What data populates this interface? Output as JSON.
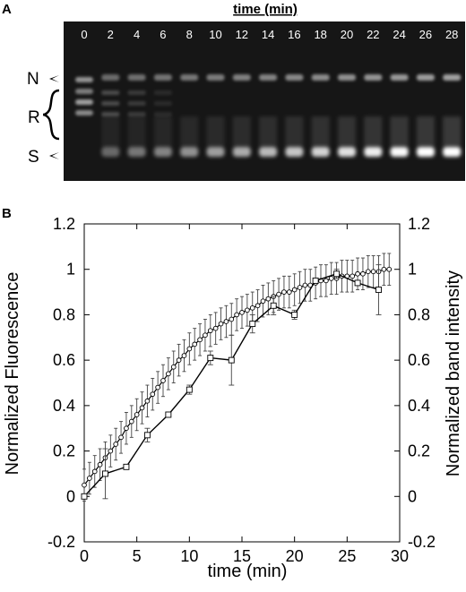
{
  "panel_a": {
    "letter": "A",
    "title": "time (min)",
    "lanes": [
      "0",
      "2",
      "4",
      "6",
      "8",
      "10",
      "12",
      "14",
      "16",
      "18",
      "20",
      "22",
      "24",
      "26",
      "28"
    ],
    "band_labels": {
      "n": "N",
      "r": "R",
      "s": "S"
    }
  },
  "panel_b": {
    "letter": "B"
  },
  "chart_data": {
    "type": "line",
    "xlabel": "time (min)",
    "ylabel": "Normalized Fluorescence",
    "ylabel_right": "Normalized band intensity",
    "xlim": [
      0,
      30
    ],
    "ylim": [
      -0.2,
      1.2
    ],
    "xticks": [
      0,
      5,
      10,
      15,
      20,
      25,
      30
    ],
    "yticks": [
      -0.2,
      0,
      0.2,
      0.4,
      0.6,
      0.8,
      1,
      1.2
    ],
    "ytick_labels": [
      "-0.2",
      "0",
      "0.2",
      "0.4",
      "0.6",
      "0.8",
      "1",
      "1.2"
    ],
    "xtick_labels": [
      "0",
      "5",
      "10",
      "15",
      "20",
      "25",
      "30"
    ],
    "grid": false,
    "series": [
      {
        "marker": "circle",
        "x": [
          0,
          0.5,
          1,
          1.5,
          2,
          2.5,
          3,
          3.5,
          4,
          4.5,
          5,
          5.5,
          6,
          6.5,
          7,
          7.5,
          8,
          8.5,
          9,
          9.5,
          10,
          10.5,
          11,
          11.5,
          12,
          12.5,
          13,
          13.5,
          14,
          14.5,
          15,
          15.5,
          16,
          16.5,
          17,
          17.5,
          18,
          18.5,
          19,
          19.5,
          20,
          20.5,
          21,
          21.5,
          22,
          22.5,
          23,
          23.5,
          24,
          24.5,
          25,
          25.5,
          26,
          26.5,
          27,
          27.5,
          28,
          28.5,
          29
        ],
        "y": [
          0.05,
          0.08,
          0.11,
          0.14,
          0.17,
          0.2,
          0.23,
          0.26,
          0.3,
          0.33,
          0.36,
          0.39,
          0.42,
          0.45,
          0.48,
          0.51,
          0.54,
          0.57,
          0.6,
          0.62,
          0.65,
          0.67,
          0.69,
          0.71,
          0.73,
          0.74,
          0.76,
          0.77,
          0.78,
          0.8,
          0.81,
          0.82,
          0.83,
          0.84,
          0.86,
          0.87,
          0.88,
          0.89,
          0.9,
          0.9,
          0.91,
          0.92,
          0.93,
          0.93,
          0.94,
          0.95,
          0.95,
          0.96,
          0.96,
          0.97,
          0.97,
          0.97,
          0.98,
          0.98,
          0.99,
          0.99,
          0.99,
          1.0,
          1.0
        ],
        "error": 0.07
      },
      {
        "marker": "square",
        "x": [
          0,
          2,
          4,
          6,
          8,
          10,
          12,
          14,
          16,
          18,
          20,
          22,
          24,
          26,
          28
        ],
        "y": [
          0.0,
          0.1,
          0.13,
          0.27,
          0.36,
          0.47,
          0.61,
          0.6,
          0.76,
          0.84,
          0.8,
          0.95,
          0.98,
          0.94,
          0.91
        ],
        "errors": [
          0,
          0.11,
          0,
          0.03,
          0,
          0.02,
          0.03,
          0.11,
          0.04,
          0.04,
          0.02,
          0,
          0.02,
          0,
          0.11
        ]
      }
    ]
  }
}
